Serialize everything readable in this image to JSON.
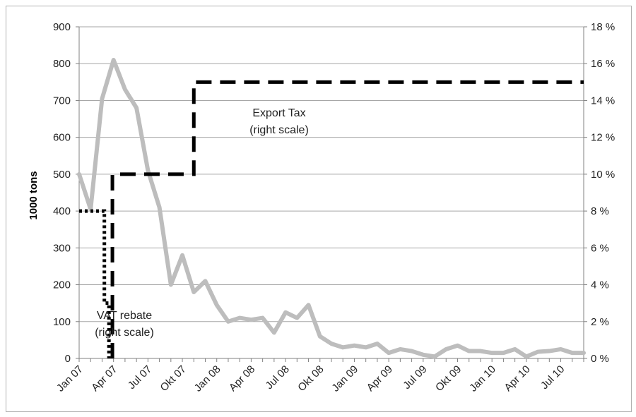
{
  "chart_data": {
    "type": "line",
    "ylabel": "1000 tons",
    "y_left_range": [
      0,
      900
    ],
    "y_left_ticks": [
      "0",
      "100",
      "200",
      "300",
      "400",
      "500",
      "600",
      "700",
      "800",
      "900"
    ],
    "y_right_range": [
      0,
      18
    ],
    "y_right_ticks": [
      "0 %",
      "2 %",
      "4 %",
      "6 %",
      "8 %",
      "10 %",
      "12 %",
      "14 %",
      "16 %",
      "18 %"
    ],
    "x_tick_labels": [
      "Jan 07",
      "Apr 07",
      "Jul 07",
      "Okt 07",
      "Jan 08",
      "Apr 08",
      "Jul 08",
      "Okt 08",
      "Jan 09",
      "Apr 09",
      "Jul 09",
      "Okt 09",
      "Jan 10",
      "Apr 10",
      "Jul 10"
    ],
    "grid": true,
    "series": [
      {
        "axis": "left",
        "style": "solid",
        "color": "#bdbdbd",
        "values": [
          500,
          405,
          705,
          810,
          730,
          680,
          510,
          410,
          200,
          280,
          180,
          210,
          145,
          100,
          110,
          105,
          110,
          70,
          125,
          110,
          145,
          60,
          40,
          30,
          35,
          30,
          40,
          15,
          25,
          20,
          10,
          5,
          25,
          35,
          20,
          20,
          15,
          15,
          25,
          5,
          18,
          20,
          25,
          15,
          15
        ]
      },
      {
        "axis": "right",
        "style": "dashed",
        "color": "#000000",
        "annotation": [
          "Export Tax",
          "(right scale)"
        ],
        "steps": [
          {
            "from": 2.9,
            "value": 0
          },
          {
            "from": 2.9,
            "value": 10
          },
          {
            "from": 10.0,
            "value": 10
          },
          {
            "from": 10.0,
            "value": 15
          },
          {
            "from": 44.0,
            "value": 15
          }
        ]
      },
      {
        "axis": "right",
        "style": "dotted",
        "color": "#000000",
        "annotation": [
          "VAT rebate",
          "(right scale)"
        ],
        "steps": [
          {
            "from": 0,
            "value": 8
          },
          {
            "from": 2.2,
            "value": 8
          },
          {
            "from": 2.2,
            "value": 3
          },
          {
            "from": 2.6,
            "value": 3
          },
          {
            "from": 2.6,
            "value": 0
          }
        ]
      }
    ]
  }
}
